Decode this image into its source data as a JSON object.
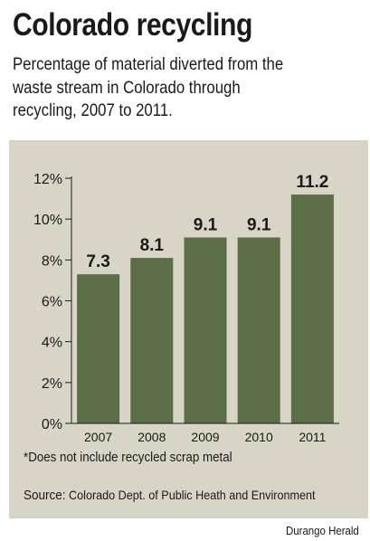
{
  "header": {
    "title": "Colorado recycling",
    "subtitle_lines": [
      "Percentage of material diverted from the",
      "waste stream in Colorado through",
      "recycling, 2007 to 2011."
    ]
  },
  "colors": {
    "bar": "#5c6e45",
    "panel": "#d8d5c7",
    "text": "#1a1a1a"
  },
  "chart_data": {
    "type": "bar",
    "categories": [
      "2007",
      "2008",
      "2009",
      "2010",
      "2011"
    ],
    "values": [
      7.3,
      8.1,
      9.1,
      9.1,
      11.2
    ],
    "value_labels": [
      "7.3",
      "8.1",
      "9.1",
      "9.1",
      "11.2"
    ],
    "ylim": [
      0,
      12
    ],
    "yticks": [
      0,
      2,
      4,
      6,
      8,
      10,
      12
    ],
    "ytick_labels": [
      "0%",
      "2%",
      "4%",
      "6%",
      "8%",
      "10%",
      "12%"
    ],
    "title": "",
    "xlabel": "",
    "ylabel": "",
    "grid": false
  },
  "footnote": "*Does not include recycled scrap metal",
  "source": {
    "label": "Source:",
    "text": "Colorado Dept. of Public Heath and Environment"
  },
  "credit": "Durango Herald"
}
